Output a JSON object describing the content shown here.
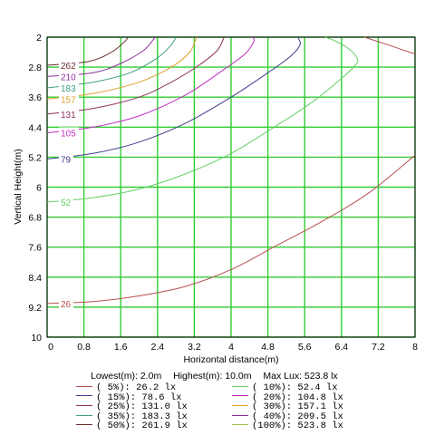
{
  "chart_data": {
    "type": "line",
    "title": "",
    "xlabel": "Horizontal distance(m)",
    "ylabel": "Vertical Height(m)",
    "xlim": [
      0,
      8
    ],
    "ylim": [
      2,
      10
    ],
    "y_inverted": true,
    "grid": true,
    "x_ticks": [
      "0",
      "0.8",
      "1.6",
      "2.4",
      "3.2",
      "4",
      "4.8",
      "5.6",
      "6.4",
      "7.2",
      "8"
    ],
    "y_ticks": [
      "2",
      "2.8",
      "3.6",
      "4.4",
      "5.2",
      "6",
      "6.8",
      "7.6",
      "8.4",
      "9.2",
      "10"
    ],
    "summary": {
      "lowest": "Lowest(m): 2.0m",
      "highest": "Highest(m): 10.0m",
      "max_lux": "Max Lux: 523.8 lx"
    },
    "series": [
      {
        "name": "(  5%):  26.2 lx",
        "label": "26",
        "color": "#b85050",
        "points": [
          [
            0,
            9.1
          ],
          [
            1,
            9.05
          ],
          [
            2,
            8.9
          ],
          [
            3,
            8.65
          ],
          [
            4,
            8.2
          ],
          [
            5,
            7.55
          ],
          [
            6,
            6.9
          ],
          [
            7,
            6.15
          ],
          [
            8,
            5.15
          ]
        ]
      },
      {
        "name": "( 10%):  52.4 lx",
        "label": "52",
        "color": "#66d066",
        "points": [
          [
            0,
            6.4
          ],
          [
            1,
            6.28
          ],
          [
            2,
            6.05
          ],
          [
            3,
            5.65
          ],
          [
            4,
            5.1
          ],
          [
            5,
            4.35
          ],
          [
            5.8,
            3.7
          ],
          [
            6.4,
            3.1
          ],
          [
            6.7,
            2.75
          ],
          [
            6.75,
            2.6
          ],
          [
            6.6,
            2.35
          ],
          [
            6.3,
            2.12
          ],
          [
            6.05,
            2.0
          ]
        ]
      },
      {
        "name": "( 15%):  78.6 lx",
        "label": "79",
        "color": "#404090",
        "points": [
          [
            0,
            5.25
          ],
          [
            1,
            5.1
          ],
          [
            2,
            4.8
          ],
          [
            3,
            4.3
          ],
          [
            4,
            3.6
          ],
          [
            4.8,
            2.95
          ],
          [
            5.3,
            2.5
          ],
          [
            5.5,
            2.2
          ],
          [
            5.45,
            2.0
          ]
        ]
      },
      {
        "name": "( 20%): 104.8 lx",
        "label": "105",
        "color": "#c030c0",
        "points": [
          [
            0,
            4.55
          ],
          [
            1,
            4.4
          ],
          [
            2,
            4.1
          ],
          [
            3,
            3.55
          ],
          [
            3.8,
            2.9
          ],
          [
            4.3,
            2.45
          ],
          [
            4.5,
            2.1
          ],
          [
            4.45,
            2.0
          ]
        ]
      },
      {
        "name": "( 25%): 131.0 lx",
        "label": "131",
        "color": "#903060",
        "points": [
          [
            0,
            4.05
          ],
          [
            1,
            3.9
          ],
          [
            2,
            3.6
          ],
          [
            2.7,
            3.2
          ],
          [
            3.3,
            2.75
          ],
          [
            3.7,
            2.35
          ],
          [
            3.85,
            2.0
          ]
        ]
      },
      {
        "name": "( 30%): 157.1 lx",
        "label": "157",
        "color": "#e0a030",
        "points": [
          [
            0,
            3.65
          ],
          [
            1,
            3.5
          ],
          [
            2,
            3.2
          ],
          [
            2.7,
            2.8
          ],
          [
            3.1,
            2.4
          ],
          [
            3.25,
            2.0
          ]
        ]
      },
      {
        "name": "( 35%): 183.3 lx",
        "label": "183",
        "color": "#40a080",
        "points": [
          [
            0,
            3.35
          ],
          [
            1,
            3.2
          ],
          [
            1.8,
            2.95
          ],
          [
            2.4,
            2.55
          ],
          [
            2.7,
            2.2
          ],
          [
            2.8,
            2.0
          ]
        ]
      },
      {
        "name": "( 40%): 209.5 lx",
        "label": "210",
        "color": "#9030a0",
        "points": [
          [
            0,
            3.05
          ],
          [
            1,
            2.95
          ],
          [
            1.6,
            2.7
          ],
          [
            2.1,
            2.35
          ],
          [
            2.35,
            2.0
          ]
        ]
      },
      {
        "name": "( 50%): 261.9 lx",
        "label": "262",
        "color": "#6a3030",
        "points": [
          [
            0,
            2.75
          ],
          [
            0.9,
            2.65
          ],
          [
            1.4,
            2.4
          ],
          [
            1.7,
            2.1
          ],
          [
            1.75,
            2.0
          ]
        ]
      },
      {
        "name": "(100%): 523.8 lx",
        "label": "",
        "color": "#a0c050",
        "points": []
      }
    ],
    "boundary": {
      "color": "#b85050",
      "points": [
        [
          6.9,
          2.0
        ],
        [
          7.4,
          2.2
        ],
        [
          8,
          2.45
        ]
      ]
    }
  }
}
